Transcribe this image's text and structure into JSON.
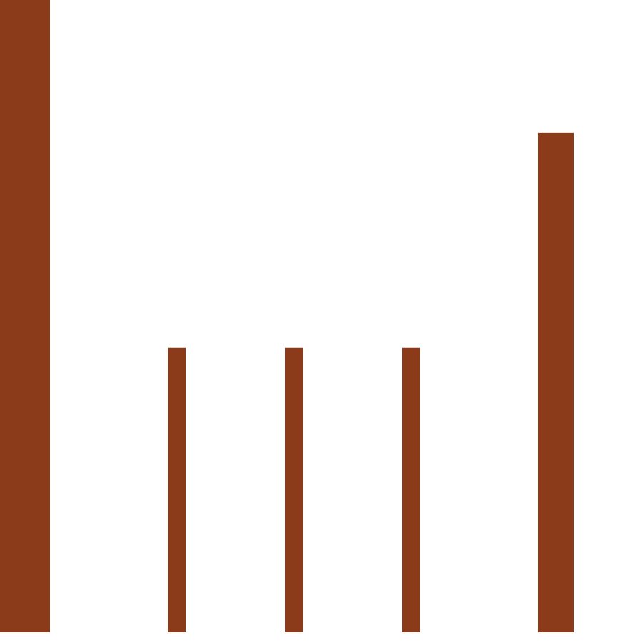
{
  "chart_data": {
    "type": "bar",
    "categories": [
      "",
      "",
      "",
      "",
      ""
    ],
    "values": [
      1.0,
      0.45,
      0.45,
      0.45,
      0.79
    ],
    "ylim": [
      0,
      1
    ],
    "grid": false,
    "axes_visible": false,
    "bar_color": "#8B3A1A",
    "background": "#FFFFFF"
  }
}
